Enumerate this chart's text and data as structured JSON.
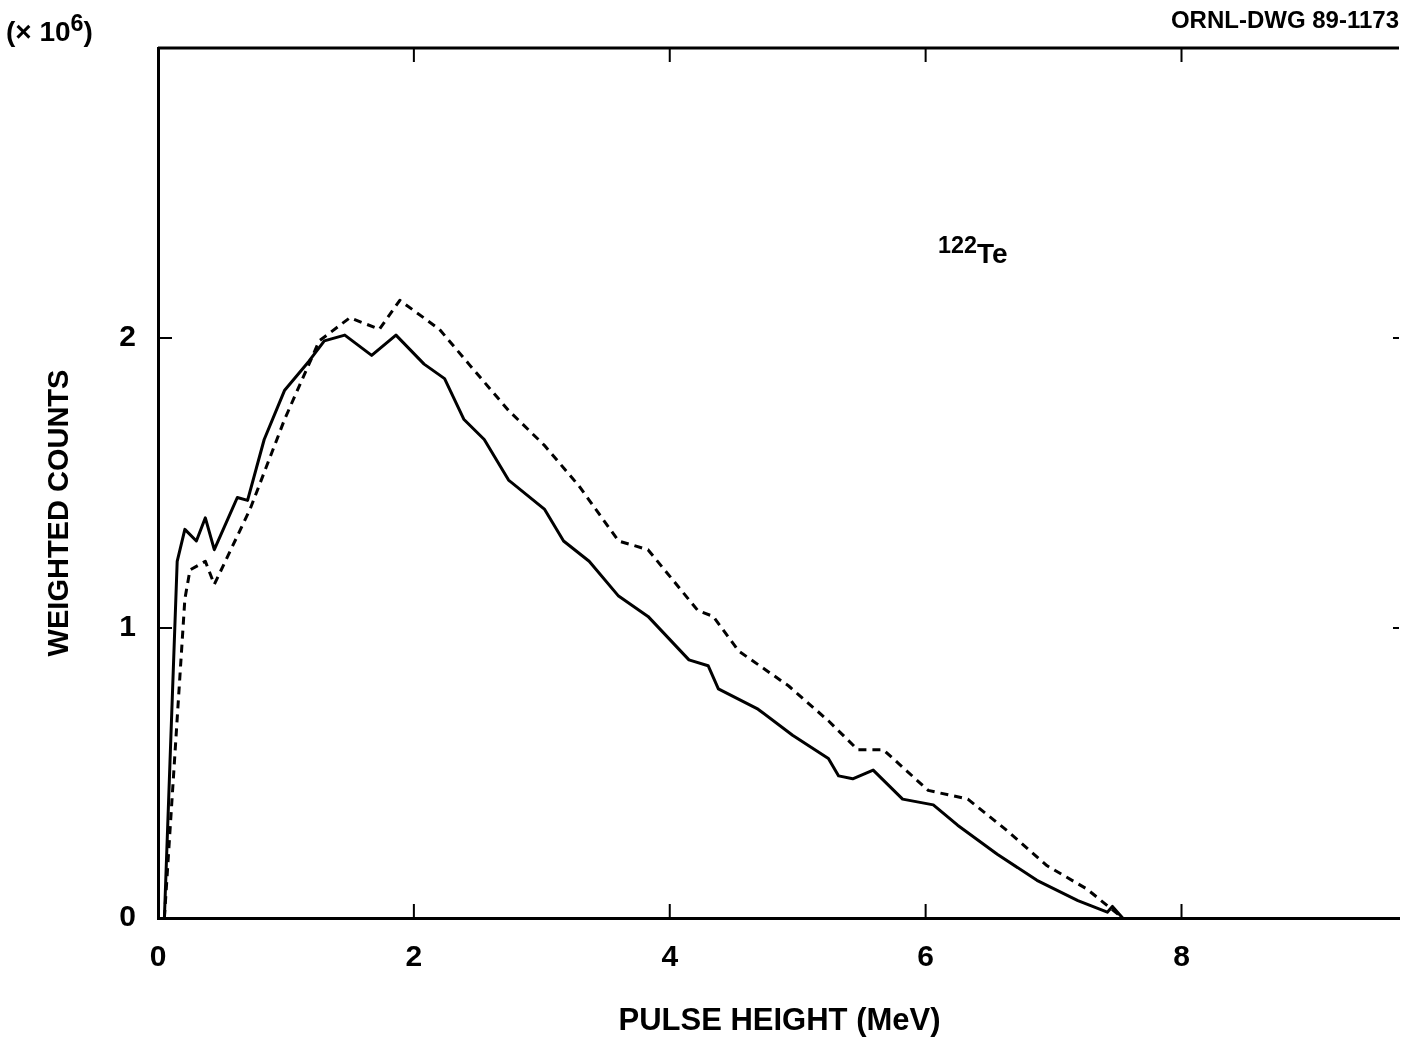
{
  "chart_data": {
    "type": "line",
    "xlabel": "PULSE HEIGHT (MeV)",
    "ylabel": "WEIGHTED COUNTS",
    "annotations": [
      "ORNL-DWG 89-1173",
      "(× 10$^{6}$)",
      "$^{122}$Te"
    ],
    "xlim": [
      0,
      9.7
    ],
    "ylim": [
      0,
      3
    ],
    "xticks": [
      0,
      2,
      4,
      6,
      8
    ],
    "yticks": [
      0,
      1,
      2
    ],
    "grid": false,
    "marker": "none",
    "series": [
      {
        "color": "#000000",
        "line_style": "solid",
        "x": [
          0.05,
          0.15,
          0.21,
          0.3,
          0.37,
          0.44,
          0.62,
          0.7,
          0.83,
          0.99,
          1.18,
          1.3,
          1.46,
          1.67,
          1.86,
          2.08,
          2.24,
          2.39,
          2.55,
          2.74,
          3.02,
          3.17,
          3.37,
          3.6,
          3.83,
          4.15,
          4.3,
          4.38,
          4.69,
          4.96,
          5.24,
          5.32,
          5.43,
          5.59,
          5.82,
          6.06,
          6.25,
          6.56,
          6.87,
          7.19,
          7.42,
          7.46,
          7.54
        ],
        "values": [
          0,
          1.23,
          1.34,
          1.3,
          1.38,
          1.27,
          1.45,
          1.44,
          1.65,
          1.82,
          1.92,
          1.99,
          2.01,
          1.94,
          2.01,
          1.91,
          1.86,
          1.72,
          1.65,
          1.51,
          1.41,
          1.3,
          1.23,
          1.11,
          1.04,
          0.89,
          0.87,
          0.79,
          0.72,
          0.63,
          0.55,
          0.49,
          0.48,
          0.51,
          0.41,
          0.39,
          0.32,
          0.22,
          0.13,
          0.06,
          0.02,
          0.04,
          0
        ]
      },
      {
        "color": "#000000",
        "line_style": "dashed",
        "x": [
          0.05,
          0.21,
          0.25,
          0.37,
          0.44,
          0.72,
          0.99,
          1.26,
          1.5,
          1.73,
          1.89,
          2.2,
          2.43,
          2.74,
          3.02,
          3.29,
          3.6,
          3.83,
          4.22,
          4.34,
          4.54,
          4.93,
          5.24,
          5.47,
          5.67,
          6.02,
          6.33,
          6.64,
          6.95,
          7.26,
          7.54
        ],
        "values": [
          0,
          1.1,
          1.2,
          1.23,
          1.15,
          1.41,
          1.72,
          1.99,
          2.07,
          2.03,
          2.13,
          2.03,
          1.91,
          1.75,
          1.63,
          1.49,
          1.3,
          1.27,
          1.06,
          1.04,
          0.92,
          0.8,
          0.68,
          0.58,
          0.58,
          0.44,
          0.41,
          0.3,
          0.18,
          0.1,
          0
        ]
      }
    ]
  }
}
